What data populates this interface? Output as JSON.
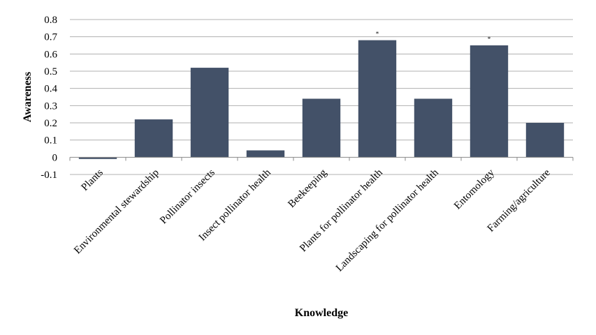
{
  "chart_data": {
    "type": "bar",
    "categories": [
      "Plants",
      "Environmental stewardship",
      "Pollinator insects",
      "Insect pollinator health",
      "Beekeeping",
      "Plants for pollinator health",
      "Landscaping for pollinator health",
      "Entomology",
      "Farming/agriculture"
    ],
    "values": [
      -0.01,
      0.22,
      0.52,
      0.04,
      0.34,
      0.68,
      0.34,
      0.65,
      0.2
    ],
    "annotations": [
      "",
      "",
      "",
      "",
      "",
      "*",
      "",
      "*",
      ""
    ],
    "xlabel": "Knowledge",
    "ylabel": "Awareness",
    "ylim": [
      -0.1,
      0.8
    ],
    "yticks": [
      "-0.1",
      "0",
      "0.1",
      "0.2",
      "0.3",
      "0.4",
      "0.5",
      "0.6",
      "0.7",
      "0.8"
    ],
    "grid": true,
    "bar_color": "#435168",
    "grid_color": "#b0b0b0"
  }
}
